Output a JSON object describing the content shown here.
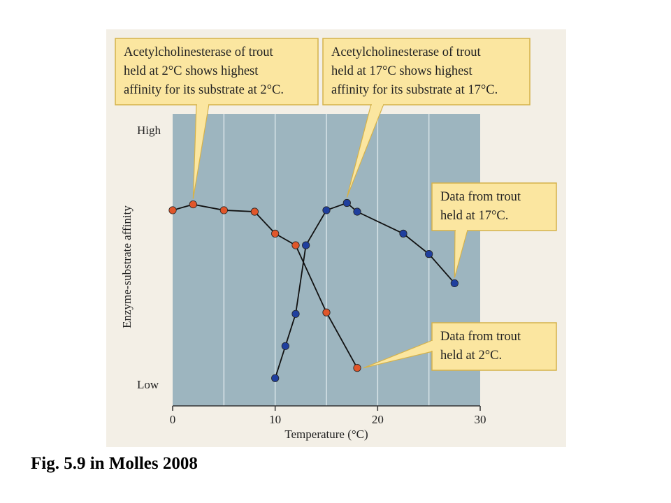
{
  "caption": "Fig. 5.9 in Molles 2008",
  "colors": {
    "panel": "#f3efe6",
    "plot_bg": "#9db5bf",
    "grid": "#d8e4e8",
    "series_2c": "#e0562a",
    "series_17c": "#1f3f9e",
    "callout_fill": "#fbe6a0",
    "callout_stroke": "#d5b24a"
  },
  "chart_data": {
    "type": "line",
    "title": "",
    "xlabel": "Temperature (°C)",
    "ylabel": "Enzyme-substrate affinity",
    "xlim": [
      0,
      30
    ],
    "ylim": [
      0,
      10
    ],
    "xticks": [
      0,
      10,
      20,
      30
    ],
    "xtick_labels": [
      "0",
      "10",
      "20",
      "30"
    ],
    "ytick_labels": {
      "high": "High",
      "low": "Low"
    },
    "grid": true,
    "series": [
      {
        "color": "#e0562a",
        "x": [
          0,
          2,
          5,
          8,
          10,
          12,
          15,
          18
        ],
        "y": [
          6.7,
          6.9,
          6.7,
          6.65,
          5.9,
          5.5,
          3.2,
          1.3
        ]
      },
      {
        "color": "#1f3f9e",
        "x": [
          10,
          11,
          12,
          13,
          15,
          17,
          18,
          22.5,
          25,
          27.5
        ],
        "y": [
          0.95,
          2.05,
          3.15,
          5.5,
          6.7,
          6.95,
          6.65,
          5.9,
          5.2,
          4.2
        ]
      }
    ],
    "annotations": [
      {
        "id": "callout-2c-affinity",
        "lines": [
          "Acetylcholinesterase of trout",
          "held at 2°C shows highest",
          "affinity for its substrate at 2°C."
        ],
        "points_to": {
          "x": 2,
          "y": 6.9
        }
      },
      {
        "id": "callout-17c-affinity",
        "lines": [
          "Acetylcholinesterase of trout",
          "held at 17°C shows highest",
          "affinity for its substrate at 17°C."
        ],
        "points_to": {
          "x": 17,
          "y": 6.95
        }
      },
      {
        "id": "callout-17c-data",
        "lines": [
          "Data from trout",
          "held at 17°C."
        ],
        "points_to": {
          "x": 27.5,
          "y": 4.2
        }
      },
      {
        "id": "callout-2c-data",
        "lines": [
          "Data from trout",
          "held at 2°C."
        ],
        "points_to": {
          "x": 18,
          "y": 1.3
        }
      }
    ]
  }
}
